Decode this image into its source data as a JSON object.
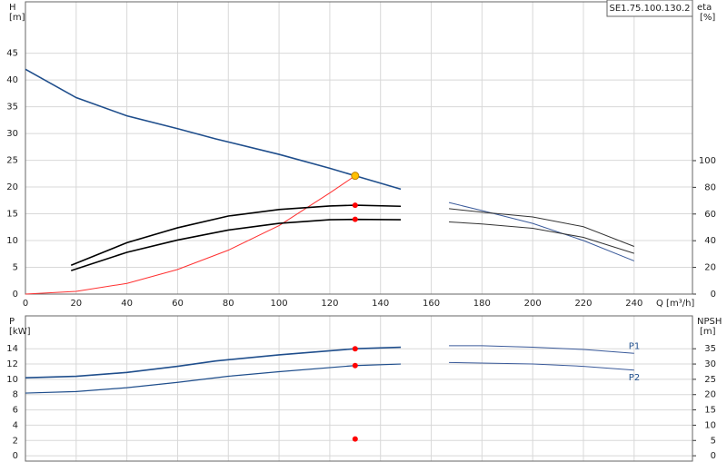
{
  "chart_data": [
    {
      "type": "line",
      "label": "SE1.75.100.130.2",
      "ylabel": "H",
      "yunit": "[m]",
      "y2label": "eta",
      "y2unit": "[%]",
      "xlabel": "Q [m³/h]",
      "xlim": [
        0,
        263
      ],
      "ylim": [
        0,
        54.6
      ],
      "y2lim": [
        0,
        219
      ],
      "grid": true,
      "xticks": [
        0,
        20,
        40,
        60,
        80,
        100,
        120,
        140,
        160,
        180,
        200,
        220,
        240
      ],
      "yticks": [
        0,
        5,
        10,
        15,
        20,
        25,
        30,
        35,
        40,
        45
      ],
      "y2ticks": [
        0,
        20,
        40,
        60,
        80,
        100
      ],
      "series": [
        {
          "color": "#1f4e8c",
          "width": 1.6,
          "x": [
            0,
            20,
            40,
            60,
            75,
            100,
            120,
            130,
            148
          ],
          "values": [
            42,
            36.7,
            33.3,
            30.9,
            29,
            26.1,
            23.5,
            22.1,
            19.6
          ]
        },
        {
          "color": "#3a5a9a",
          "width": 1,
          "x": [
            167,
            180,
            200,
            220,
            240
          ],
          "values": [
            17.1,
            15.6,
            13.2,
            10,
            6.2
          ]
        },
        {
          "color": "#ff3030",
          "width": 1,
          "x": [
            0,
            20,
            40,
            60,
            80,
            100,
            120,
            130
          ],
          "values": [
            0,
            0.5,
            2,
            4.6,
            8.2,
            12.8,
            18.9,
            22.1
          ]
        },
        {
          "color": "#000000",
          "width": 1.6,
          "axis": "y2",
          "x": [
            18,
            40,
            60,
            80,
            100,
            120,
            130,
            148
          ],
          "values": [
            21.6,
            38.5,
            49.7,
            58.5,
            63.4,
            66,
            66.6,
            65.8
          ]
        },
        {
          "color": "#000000",
          "width": 1.6,
          "axis": "y2",
          "x": [
            18,
            40,
            60,
            80,
            100,
            120,
            130,
            148
          ],
          "values": [
            17.6,
            31.3,
            40.5,
            48,
            53,
            55.7,
            56,
            55.7
          ]
        },
        {
          "color": "#333333",
          "width": 1,
          "axis": "y2",
          "x": [
            167,
            180,
            200,
            220,
            240
          ],
          "values": [
            64,
            61.4,
            57.8,
            50.5,
            35.7
          ]
        },
        {
          "color": "#333333",
          "width": 1,
          "axis": "y2",
          "x": [
            167,
            180,
            200,
            220,
            240
          ],
          "values": [
            54.1,
            52.5,
            49.3,
            42.5,
            30.5
          ]
        }
      ],
      "points": [
        {
          "color": "#ffc000",
          "x": 130,
          "value": 22.1
        },
        {
          "color": "#ff0000",
          "axis": "y2",
          "x": 130,
          "value": 66.6
        },
        {
          "color": "#ff0000",
          "axis": "y2",
          "x": 130,
          "value": 56
        }
      ]
    },
    {
      "type": "line",
      "ylabel": "P",
      "yunit": "[kW]",
      "y2label": "NPSH",
      "y2unit": "[m]",
      "xlim": [
        0,
        263
      ],
      "ylim": [
        -0.7,
        18.3
      ],
      "y2lim": [
        -1.75,
        45.75
      ],
      "grid": true,
      "yticks": [
        0,
        2,
        4,
        6,
        8,
        10,
        12,
        14
      ],
      "y2ticks": [
        0,
        5,
        10,
        15,
        20,
        25,
        30,
        35
      ],
      "series": [
        {
          "name": "P1",
          "color": "#1f4e8c",
          "width": 1.6,
          "x": [
            0,
            20,
            40,
            60,
            75,
            100,
            130,
            148
          ],
          "values": [
            10.2,
            10.4,
            10.9,
            11.7,
            12.4,
            13.2,
            14,
            14.2
          ]
        },
        {
          "color": "#3a5a9a",
          "width": 1,
          "x": [
            167,
            180,
            200,
            220,
            240
          ],
          "values": [
            14.4,
            14.4,
            14.2,
            13.9,
            13.4
          ]
        },
        {
          "name": "P2",
          "color": "#1f4e8c",
          "width": 1.2,
          "x": [
            0,
            20,
            40,
            60,
            80,
            100,
            130,
            148
          ],
          "values": [
            8.2,
            8.4,
            8.9,
            9.6,
            10.4,
            11,
            11.8,
            12
          ]
        },
        {
          "color": "#3a5a9a",
          "width": 1,
          "x": [
            167,
            200,
            220,
            240
          ],
          "values": [
            12.2,
            12,
            11.7,
            11.2
          ]
        }
      ],
      "points": [
        {
          "color": "#ff0000",
          "x": 130,
          "value": 14
        },
        {
          "color": "#ff0000",
          "x": 130,
          "value": 11.8
        },
        {
          "color": "#ff0000",
          "axis": "y2",
          "x": 130,
          "value": 5.5
        }
      ]
    }
  ]
}
